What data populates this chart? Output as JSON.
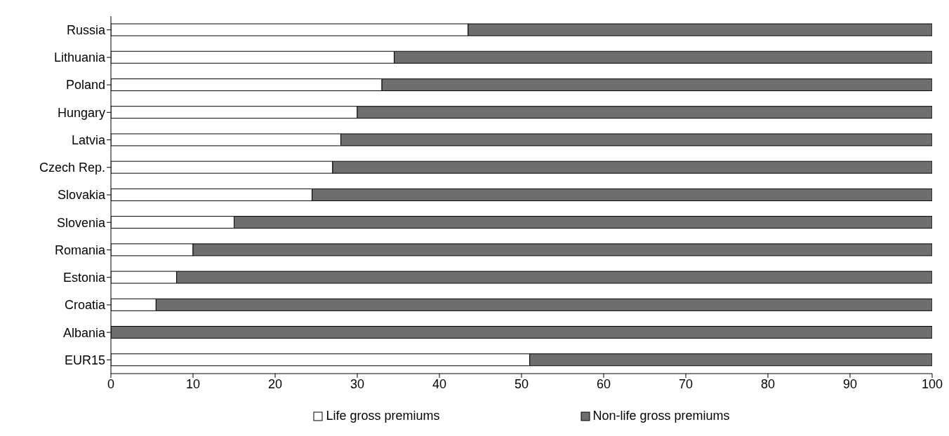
{
  "chart_data": {
    "type": "bar",
    "orientation": "horizontal",
    "stacked": true,
    "categories": [
      "Russia",
      "Lithuania",
      "Poland",
      "Hungary",
      "Latvia",
      "Czech Rep.",
      "Slovakia",
      "Slovenia",
      "Romania",
      "Estonia",
      "Croatia",
      "Albania",
      "EUR15"
    ],
    "series": [
      {
        "name": "Life gross premiums",
        "color": "#ffffff",
        "values": [
          43.5,
          34.5,
          33,
          30,
          28,
          27,
          24.5,
          15,
          10,
          8,
          5.5,
          0,
          51
        ]
      },
      {
        "name": "Non-life gross premiums",
        "color": "#6e6e6e",
        "values": [
          56.5,
          65.5,
          67,
          70,
          72,
          73,
          75.5,
          85,
          90,
          92,
          94.5,
          100,
          49
        ]
      }
    ],
    "xlim": [
      0,
      100
    ],
    "xticks": [
      0,
      10,
      20,
      30,
      40,
      50,
      60,
      70,
      80,
      90,
      100
    ],
    "grid": false,
    "legend": "bottom"
  }
}
